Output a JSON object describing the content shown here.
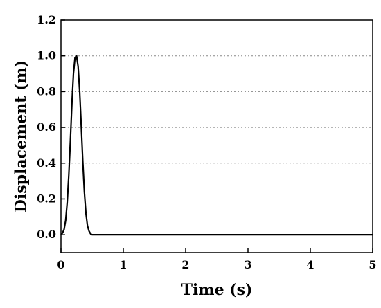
{
  "chart_data": {
    "type": "line",
    "title": "",
    "xlabel": "Time (s)",
    "ylabel": "Displacement (m)",
    "xlim": [
      0,
      5
    ],
    "ylim": [
      -0.1,
      1.2
    ],
    "xticks": [
      0,
      1,
      2,
      3,
      4,
      5
    ],
    "xtick_labels": [
      "0",
      "1",
      "2",
      "3",
      "4",
      "5"
    ],
    "yticks": [
      0.0,
      0.2,
      0.4,
      0.6,
      0.8,
      1.0,
      1.2
    ],
    "ytick_labels": [
      "0.0",
      "0.2",
      "0.4",
      "0.6",
      "0.8",
      "1.0",
      "1.2"
    ],
    "grid": "horizontal-dotted",
    "legend": "none",
    "series": [
      {
        "x": [
          0,
          0.025,
          0.05,
          0.075,
          0.1,
          0.125,
          0.15,
          0.175,
          0.2,
          0.225,
          0.25,
          0.275,
          0.3,
          0.325,
          0.35,
          0.375,
          0.4,
          0.425,
          0.45,
          0.475,
          0.5,
          0.55,
          1.0,
          2.0,
          3.0,
          4.0,
          5.0
        ],
        "y": [
          0.0,
          0.01,
          0.03,
          0.08,
          0.18,
          0.33,
          0.52,
          0.73,
          0.9,
          0.99,
          1.0,
          0.94,
          0.8,
          0.61,
          0.41,
          0.24,
          0.12,
          0.05,
          0.02,
          0.005,
          0.0,
          0.0,
          0.0,
          0.0,
          0.0,
          0.0,
          0.0
        ],
        "color": "#000000"
      }
    ]
  }
}
